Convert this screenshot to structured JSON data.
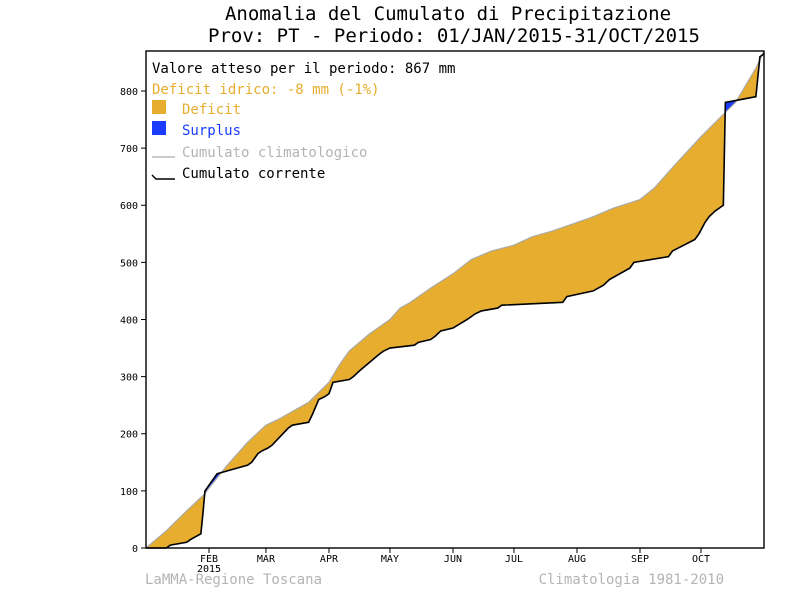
{
  "chart_data": {
    "type": "area",
    "title_line1": "Anomalia del Cumulato di Precipitazione",
    "title_line2": "Prov: PT - Periodo: 01/JAN/2015-31/OCT/2015",
    "ylim": [
      0,
      870
    ],
    "yticks": [
      0,
      100,
      200,
      300,
      400,
      500,
      600,
      700,
      800
    ],
    "xlim": [
      0,
      304
    ],
    "months": [
      {
        "label": "FEB",
        "day": 31,
        "sub": "2015"
      },
      {
        "label": "MAR",
        "day": 59,
        "sub": ""
      },
      {
        "label": "APR",
        "day": 90,
        "sub": ""
      },
      {
        "label": "MAY",
        "day": 120,
        "sub": ""
      },
      {
        "label": "JUN",
        "day": 151,
        "sub": ""
      },
      {
        "label": "JUL",
        "day": 181,
        "sub": ""
      },
      {
        "label": "AUG",
        "day": 212,
        "sub": ""
      },
      {
        "label": "SEP",
        "day": 243,
        "sub": ""
      },
      {
        "label": "OCT",
        "day": 273,
        "sub": ""
      }
    ],
    "legend": {
      "expected": "Valore atteso per il periodo: 867 mm",
      "deficit_note": "Deficit idrico: -8 mm (-1%)",
      "deficit": "Deficit",
      "surplus": "Surplus",
      "climatological": "Cumulato climatologico",
      "current": "Cumulato corrente"
    },
    "colors": {
      "deficit": "#e6ad2e",
      "surplus": "#1a3cff",
      "climatological": "#aaaaaa",
      "current": "#000000",
      "expected_text": "#000000",
      "deficit_text": "#e6ad2e",
      "surplus_text": "#1a3cff",
      "climatological_text": "#b4b4b4",
      "current_text": "#000000"
    },
    "series": [
      {
        "name": "Cumulato climatologico",
        "x": [
          0,
          10,
          20,
          29,
          31,
          40,
          50,
          59,
          65,
          70,
          80,
          90,
          95,
          100,
          110,
          120,
          125,
          130,
          140,
          151,
          160,
          170,
          181,
          190,
          200,
          212,
          220,
          230,
          243,
          250,
          260,
          273,
          280,
          290,
          300,
          304
        ],
        "y": [
          0,
          30,
          65,
          95,
          105,
          145,
          185,
          215,
          225,
          235,
          255,
          290,
          320,
          345,
          375,
          400,
          420,
          430,
          455,
          480,
          505,
          520,
          530,
          545,
          555,
          570,
          580,
          595,
          610,
          630,
          670,
          720,
          745,
          780,
          840,
          870
        ]
      },
      {
        "name": "Cumulato corrente",
        "x": [
          0,
          10,
          12,
          20,
          22,
          27,
          28,
          29,
          35,
          40,
          45,
          50,
          52,
          55,
          57,
          60,
          62,
          70,
          72,
          80,
          82,
          85,
          88,
          90,
          92,
          100,
          102,
          105,
          115,
          117,
          120,
          132,
          134,
          140,
          142,
          145,
          151,
          158,
          160,
          162,
          165,
          173,
          175,
          205,
          207,
          220,
          225,
          228,
          238,
          240,
          257,
          259,
          270,
          272,
          275,
          277,
          280,
          284,
          285,
          300,
          302,
          304
        ],
        "y": [
          0,
          0,
          5,
          10,
          15,
          25,
          60,
          100,
          130,
          135,
          140,
          145,
          150,
          165,
          170,
          175,
          180,
          210,
          215,
          220,
          235,
          260,
          265,
          270,
          290,
          295,
          300,
          310,
          340,
          345,
          350,
          355,
          360,
          365,
          370,
          380,
          385,
          400,
          405,
          410,
          415,
          420,
          425,
          430,
          440,
          450,
          460,
          470,
          490,
          500,
          510,
          520,
          540,
          550,
          570,
          580,
          590,
          600,
          780,
          790,
          860,
          865
        ]
      }
    ],
    "footer_left": "LaMMA-Regione Toscana",
    "footer_right": "Climatologia 1981-2010"
  }
}
